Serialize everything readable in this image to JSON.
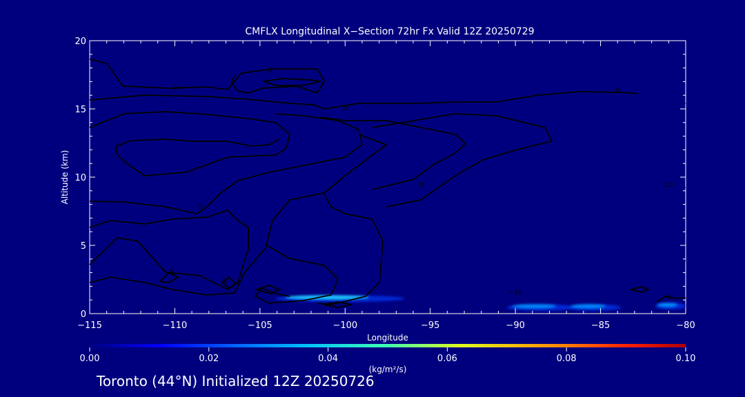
{
  "chart_data": {
    "type": "heatmap",
    "title": "CMFLX Longitudinal X−Section 72hr  Fx Valid 12Z 20250729",
    "xlabel": "Longitude",
    "ylabel": "Altitude (km)",
    "xlim": [
      -115,
      -80
    ],
    "ylim": [
      0,
      20
    ],
    "x_ticks": [
      {
        "value": -115,
        "label": "−115"
      },
      {
        "value": -110,
        "label": "−110"
      },
      {
        "value": -105,
        "label": "−105"
      },
      {
        "value": -100,
        "label": "−100"
      },
      {
        "value": -95,
        "label": "−95"
      },
      {
        "value": -90,
        "label": "−90"
      },
      {
        "value": -85,
        "label": "−85"
      },
      {
        "value": -80,
        "label": "−80"
      }
    ],
    "y_ticks": [
      {
        "value": 0,
        "label": "0"
      },
      {
        "value": 5,
        "label": "5"
      },
      {
        "value": 10,
        "label": "10"
      },
      {
        "value": 15,
        "label": "15"
      },
      {
        "value": 20,
        "label": "20"
      }
    ],
    "colorbar": {
      "label": "(kg/m²/s)",
      "range": [
        0.0,
        0.1
      ],
      "ticks": [
        {
          "value": 0.0,
          "label": "0.00"
        },
        {
          "value": 0.02,
          "label": "0.02"
        },
        {
          "value": 0.04,
          "label": "0.04"
        },
        {
          "value": 0.06,
          "label": "0.06"
        },
        {
          "value": 0.08,
          "label": "0.08"
        },
        {
          "value": 0.1,
          "label": "0.10"
        }
      ]
    },
    "flux_features": [
      {
        "lon_start": -104.1,
        "lon_end": -96.5,
        "alt_peak": 1.2,
        "peak_value": 0.042
      },
      {
        "lon_start": -90.5,
        "lon_end": -86.5,
        "alt_peak": 0.55,
        "peak_value": 0.025
      },
      {
        "lon_start": -87.0,
        "lon_end": -83.8,
        "alt_peak": 0.55,
        "peak_value": 0.03
      },
      {
        "lon_start": -81.8,
        "lon_end": -80.0,
        "alt_peak": 0.65,
        "peak_value": 0.028
      }
    ],
    "contour_labels": [
      {
        "text": "0",
        "lon": -104.4,
        "alt": 17.9
      },
      {
        "text": "0",
        "lon": -110.0,
        "alt": 16.6
      },
      {
        "text": "0",
        "lon": -100.0,
        "alt": 15.1
      },
      {
        "text": "0",
        "lon": -84.0,
        "alt": 16.4
      },
      {
        "text": "0",
        "lon": -95.5,
        "alt": 9.5
      },
      {
        "text": "0",
        "lon": -108.5,
        "alt": 7.9
      },
      {
        "text": "0",
        "lon": -110.2,
        "alt": 3.1
      },
      {
        "text": "0",
        "lon": -107.0,
        "alt": 2.4
      },
      {
        "text": "0",
        "lon": -100.9,
        "alt": 0.7
      },
      {
        "text": "0",
        "lon": -81.0,
        "alt": 1.3
      },
      {
        "text": "−10",
        "lon": -90.0,
        "alt": 1.6
      },
      {
        "text": "10",
        "lon": -81.0,
        "alt": 9.5
      }
    ]
  },
  "footer": {
    "text": "Toronto (44°N) Initialized 12Z 20250726"
  }
}
